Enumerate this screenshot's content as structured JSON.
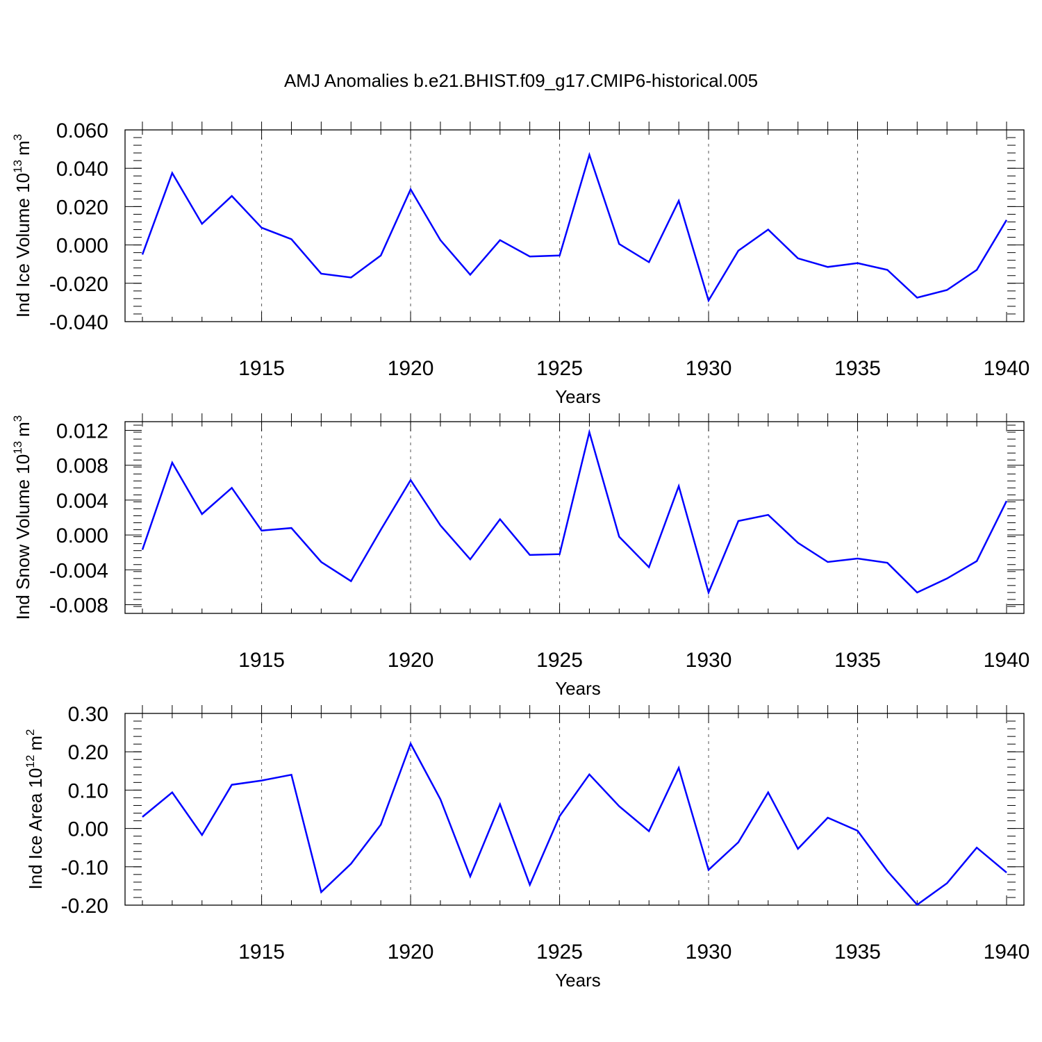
{
  "title": "AMJ Anomalies b.e21.BHIST.f09_g17.CMIP6-historical.005",
  "line_color": "#0000ff",
  "chart_data": [
    {
      "type": "line",
      "ylabel_main": "Ind Ice Volume 10",
      "ylabel_exp": "13",
      "ylabel_unit": "m",
      "ylabel_unit_exp": "3",
      "xlabel": "Years",
      "xlim": [
        1911,
        1940
      ],
      "ylim": [
        -0.04,
        0.06
      ],
      "yticks": [
        -0.04,
        -0.02,
        0.0,
        0.02,
        0.04,
        0.06
      ],
      "yticklabels": [
        "-0.040",
        "-0.020",
        "0.000",
        "0.020",
        "0.040",
        "0.060"
      ],
      "yminor_step": 0.004,
      "xticks": [
        1915,
        1920,
        1925,
        1930,
        1935,
        1940
      ],
      "xticklabels": [
        "1915",
        "1920",
        "1925",
        "1930",
        "1935",
        "1940"
      ],
      "grid_x": [
        1915,
        1920,
        1925,
        1930,
        1935
      ],
      "x": [
        1911,
        1912,
        1913,
        1914,
        1915,
        1916,
        1917,
        1918,
        1919,
        1920,
        1921,
        1922,
        1923,
        1924,
        1925,
        1926,
        1927,
        1928,
        1929,
        1930,
        1931,
        1932,
        1933,
        1934,
        1935,
        1936,
        1937,
        1938,
        1939,
        1940
      ],
      "series": [
        {
          "values": [
            -0.005,
            0.0375,
            0.011,
            0.0255,
            0.009,
            0.003,
            -0.015,
            -0.017,
            -0.0055,
            0.029,
            0.0025,
            -0.0155,
            0.0025,
            -0.006,
            -0.0055,
            0.047,
            0.0005,
            -0.009,
            0.023,
            -0.029,
            -0.003,
            0.008,
            -0.007,
            -0.0115,
            -0.0095,
            -0.013,
            -0.0275,
            -0.0235,
            -0.013,
            0.013
          ]
        }
      ]
    },
    {
      "type": "line",
      "ylabel_main": "Ind Snow Volume 10",
      "ylabel_exp": "13",
      "ylabel_unit": "m",
      "ylabel_unit_exp": "3",
      "xlabel": "Years",
      "xlim": [
        1911,
        1940
      ],
      "ylim": [
        -0.009,
        0.013
      ],
      "yticks": [
        -0.008,
        -0.004,
        0.0,
        0.004,
        0.008,
        0.012
      ],
      "yticklabels": [
        "-0.008",
        "-0.004",
        "0.000",
        "0.004",
        "0.008",
        "0.012"
      ],
      "yminor_step": 0.0008,
      "xticks": [
        1915,
        1920,
        1925,
        1930,
        1935,
        1940
      ],
      "xticklabels": [
        "1915",
        "1920",
        "1925",
        "1930",
        "1935",
        "1940"
      ],
      "grid_x": [
        1915,
        1920,
        1925,
        1930,
        1935
      ],
      "x": [
        1911,
        1912,
        1913,
        1914,
        1915,
        1916,
        1917,
        1918,
        1919,
        1920,
        1921,
        1922,
        1923,
        1924,
        1925,
        1926,
        1927,
        1928,
        1929,
        1930,
        1931,
        1932,
        1933,
        1934,
        1935,
        1936,
        1937,
        1938,
        1939,
        1940
      ],
      "series": [
        {
          "values": [
            -0.0017,
            0.0083,
            0.0024,
            0.0054,
            0.0005,
            0.0008,
            -0.0031,
            -0.0053,
            0.0006,
            0.0063,
            0.0011,
            -0.0028,
            0.0018,
            -0.0023,
            -0.0022,
            0.0118,
            -0.0002,
            -0.0037,
            0.0056,
            -0.0066,
            0.0016,
            0.0023,
            -0.0009,
            -0.0031,
            -0.0027,
            -0.0032,
            -0.0066,
            -0.005,
            -0.003,
            0.0039
          ]
        }
      ]
    },
    {
      "type": "line",
      "ylabel_main": "Ind Ice Area 10",
      "ylabel_exp": "12",
      "ylabel_unit": "m",
      "ylabel_unit_exp": "2",
      "xlabel": "Years",
      "xlim": [
        1911,
        1940
      ],
      "ylim": [
        -0.2,
        0.3
      ],
      "yticks": [
        -0.2,
        -0.1,
        0.0,
        0.1,
        0.2,
        0.3
      ],
      "yticklabels": [
        "-0.20",
        "-0.10",
        "0.00",
        "0.10",
        "0.20",
        "0.30"
      ],
      "yminor_step": 0.02,
      "xticks": [
        1915,
        1920,
        1925,
        1930,
        1935,
        1940
      ],
      "xticklabels": [
        "1915",
        "1920",
        "1925",
        "1930",
        "1935",
        "1940"
      ],
      "grid_x": [
        1915,
        1920,
        1925,
        1930,
        1935
      ],
      "x": [
        1911,
        1912,
        1913,
        1914,
        1915,
        1916,
        1917,
        1918,
        1919,
        1920,
        1921,
        1922,
        1923,
        1924,
        1925,
        1926,
        1927,
        1928,
        1929,
        1930,
        1931,
        1932,
        1933,
        1934,
        1935,
        1936,
        1937,
        1938,
        1939,
        1940
      ],
      "series": [
        {
          "values": [
            0.03,
            0.094,
            -0.017,
            0.114,
            0.125,
            0.14,
            -0.166,
            -0.092,
            0.01,
            0.221,
            0.076,
            -0.125,
            0.063,
            -0.147,
            0.032,
            0.141,
            0.058,
            -0.007,
            0.158,
            -0.108,
            -0.036,
            0.094,
            -0.053,
            0.028,
            -0.006,
            -0.111,
            -0.199,
            -0.143,
            -0.05,
            -0.115
          ]
        }
      ]
    }
  ]
}
